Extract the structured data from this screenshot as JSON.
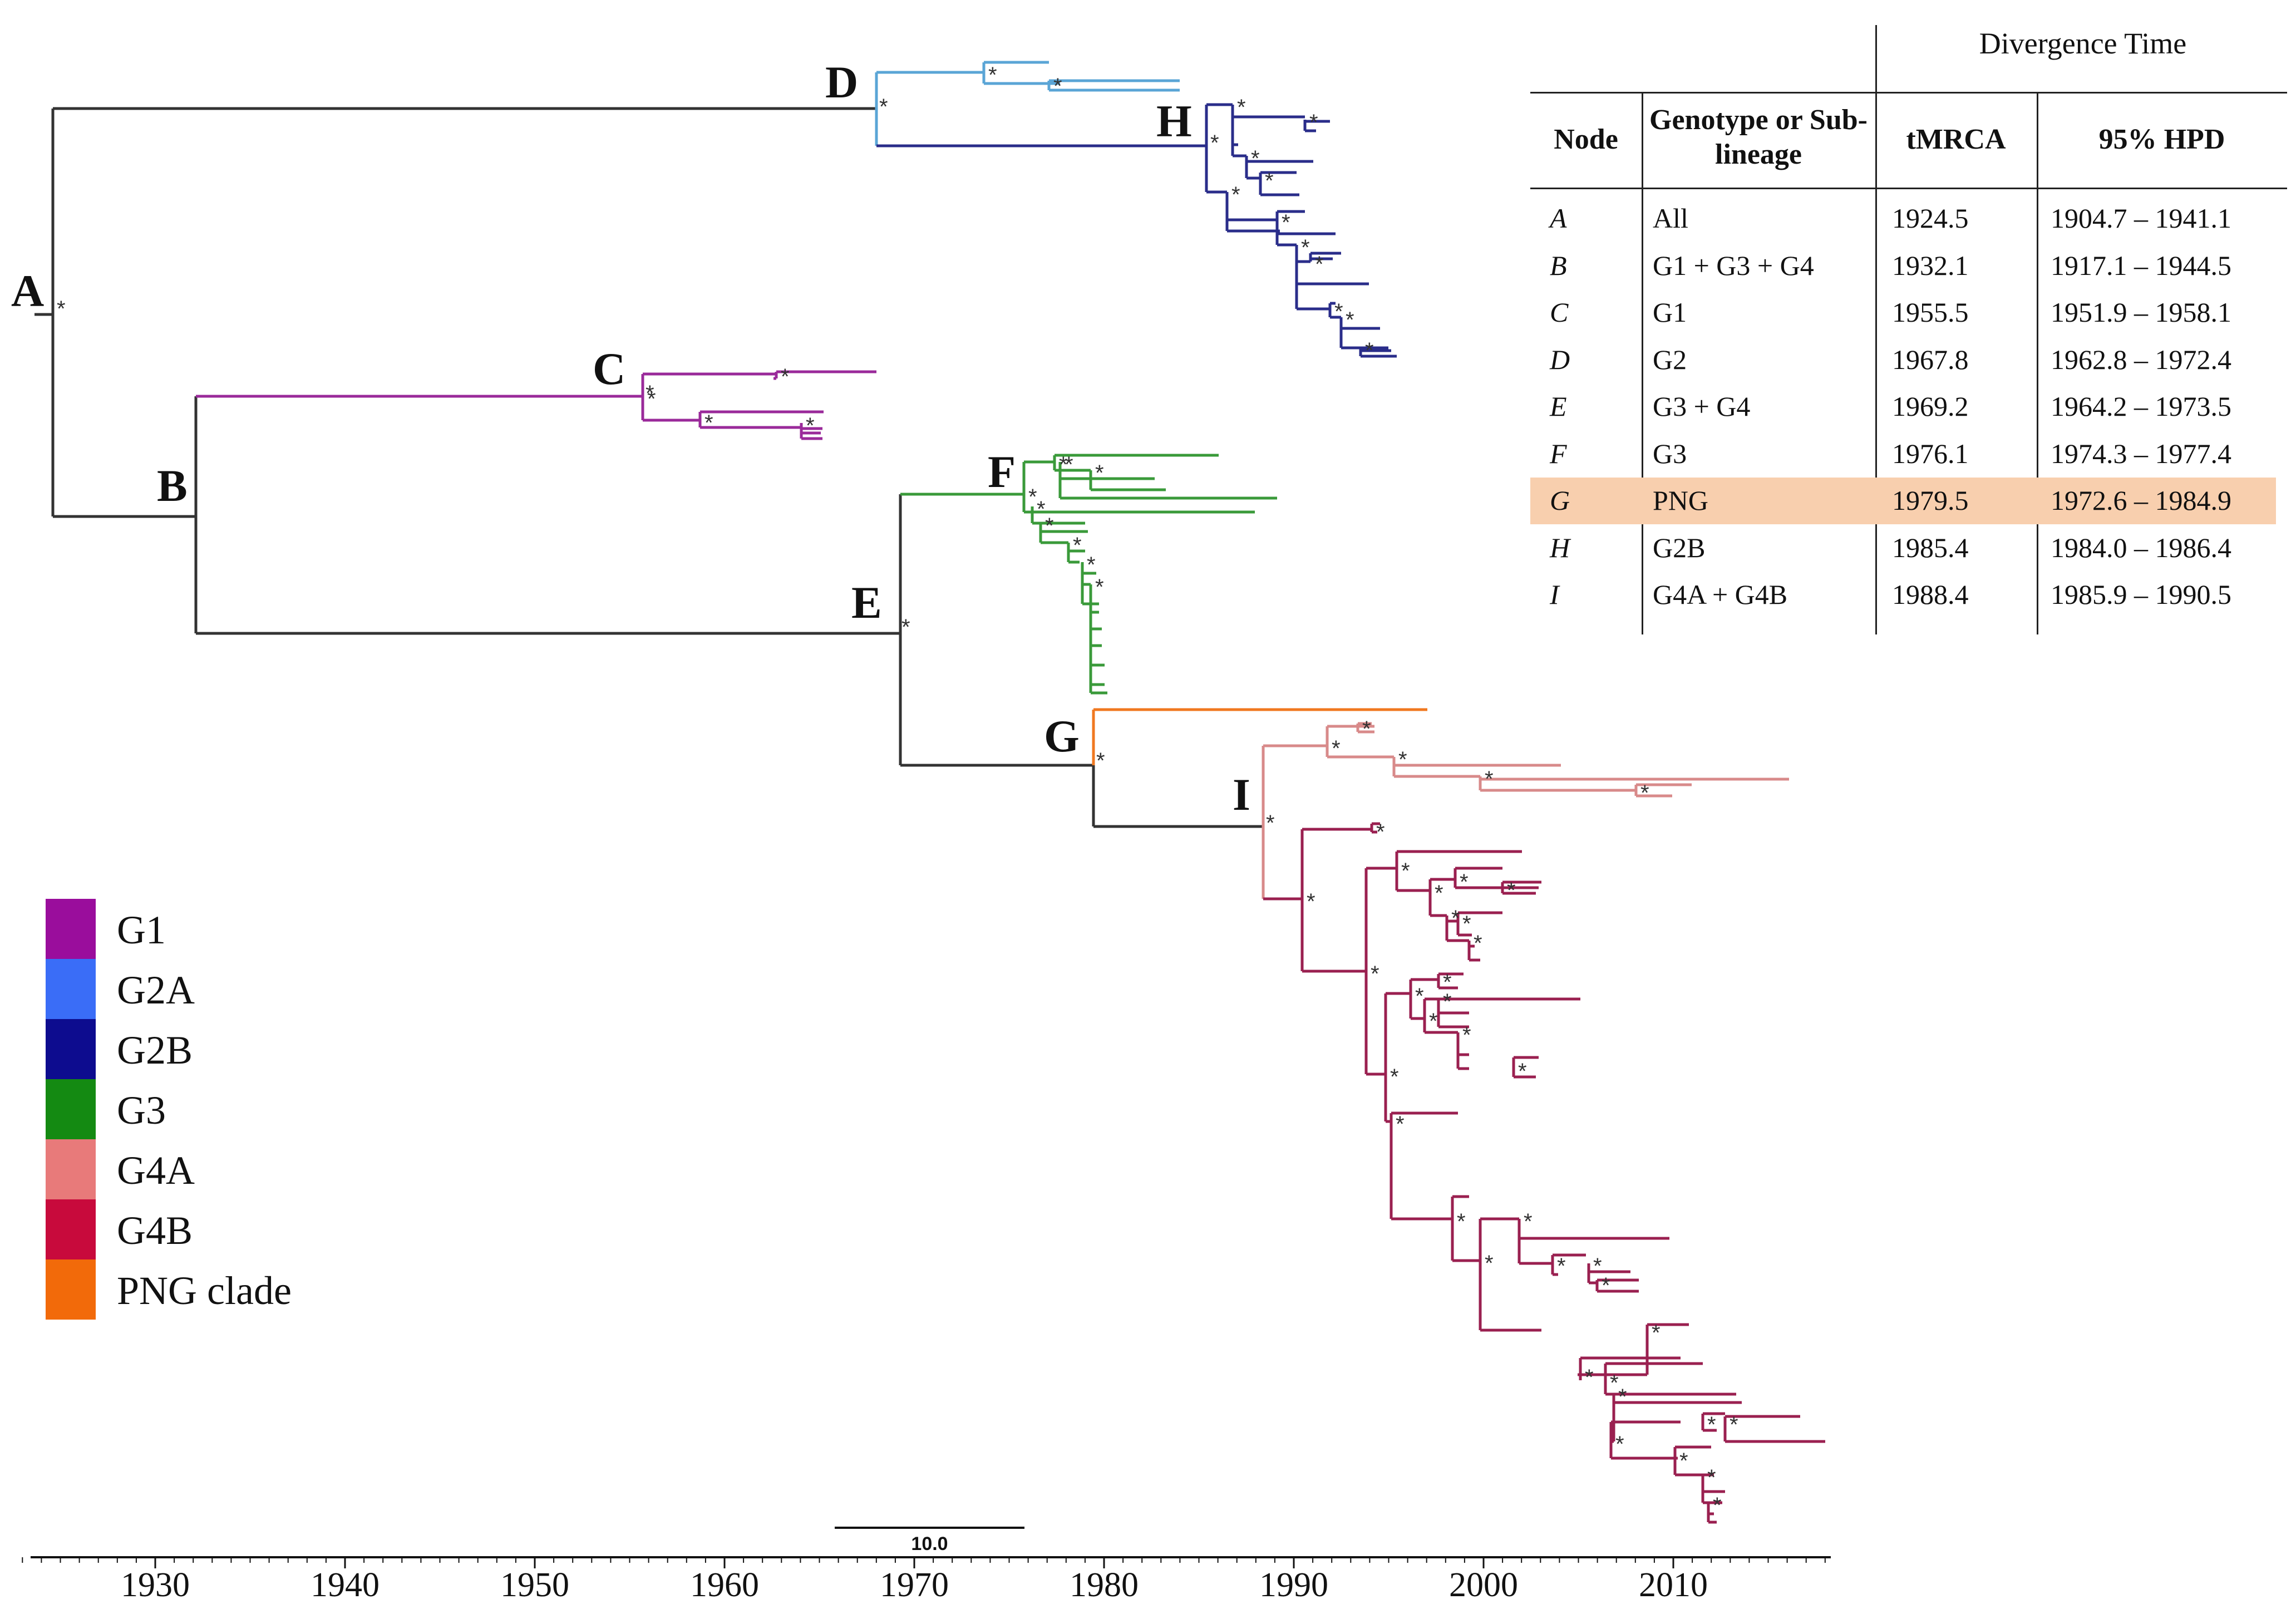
{
  "nodes": [
    {
      "label": "A"
    },
    {
      "label": "B"
    },
    {
      "label": "C"
    },
    {
      "label": "D"
    },
    {
      "label": "E"
    },
    {
      "label": "F"
    },
    {
      "label": "G"
    },
    {
      "label": "H"
    },
    {
      "label": "I"
    }
  ],
  "support_marker": "*",
  "axis": {
    "ticks": [
      "1930",
      "1940",
      "1950",
      "1960",
      "1970",
      "1980",
      "1990",
      "2000",
      "2010"
    ],
    "range": [
      1923,
      2018
    ]
  },
  "scale_bar": {
    "label": "10.0",
    "length_years": 10
  },
  "legend": [
    {
      "label": "G1",
      "color": "#9a0d9c"
    },
    {
      "label": "G2A",
      "color": "#3a6df7"
    },
    {
      "label": "G2B",
      "color": "#0d0c8f"
    },
    {
      "label": "G3",
      "color": "#148a12"
    },
    {
      "label": "G4A",
      "color": "#e87a7a"
    },
    {
      "label": "G4B",
      "color": "#c80a3c"
    },
    {
      "label": "PNG clade",
      "color": "#f26a0a"
    }
  ],
  "branch_colors": {
    "root": "#333333",
    "G1": "#9a2a9a",
    "G2A": "#5aa5d6",
    "G2B": "#2a2d8a",
    "G3": "#3a9a3a",
    "G4A": "#d88a8a",
    "G4B": "#9a2050",
    "PNG": "#f07820"
  },
  "table": {
    "group_header": "Divergence Time",
    "headers": {
      "node": "Node",
      "genotype": "Genotype or Sub-lineage",
      "tmrca": "tMRCA",
      "hpd": "95% HPD"
    },
    "highlight_color": "#f8cfae",
    "rows": [
      {
        "node": "A",
        "genotype": "All",
        "tmrca": "1924.5",
        "hpd": "1904.7 – 1941.1"
      },
      {
        "node": "B",
        "genotype": "G1 + G3 + G4",
        "tmrca": "1932.1",
        "hpd": "1917.1 – 1944.5"
      },
      {
        "node": "C",
        "genotype": "G1",
        "tmrca": "1955.5",
        "hpd": "1951.9 – 1958.1"
      },
      {
        "node": "D",
        "genotype": "G2",
        "tmrca": "1967.8",
        "hpd": "1962.8 – 1972.4"
      },
      {
        "node": "E",
        "genotype": "G3 + G4",
        "tmrca": "1969.2",
        "hpd": "1964.2 – 1973.5"
      },
      {
        "node": "F",
        "genotype": "G3",
        "tmrca": "1976.1",
        "hpd": "1974.3 – 1977.4"
      },
      {
        "node": "G",
        "genotype": "PNG",
        "tmrca": "1979.5",
        "hpd": "1972.6 – 1984.9",
        "highlight": true
      },
      {
        "node": "H",
        "genotype": "G2B",
        "tmrca": "1985.4",
        "hpd": "1984.0 – 1986.4"
      },
      {
        "node": "I",
        "genotype": "G4A + G4B",
        "tmrca": "1988.4",
        "hpd": "1985.9 – 1990.5"
      }
    ]
  }
}
